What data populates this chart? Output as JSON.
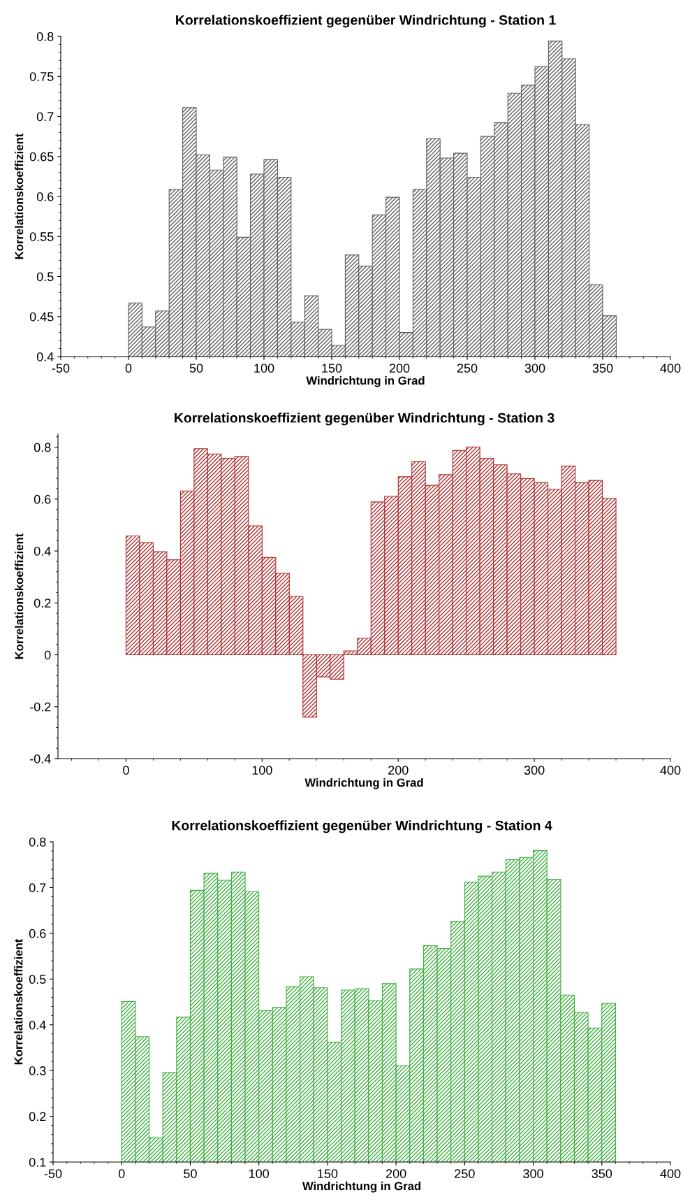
{
  "chart_data": [
    {
      "type": "histogram",
      "title": "Korrelationskoeffizient gegenüber Windrichtung - Station 1",
      "xlabel": "Windrichtung in Grad",
      "ylabel": "Korrelationskoeffizient",
      "color": "#606060",
      "bins": [
        0,
        10,
        20,
        30,
        40,
        50,
        60,
        70,
        80,
        90,
        100,
        110,
        120,
        130,
        140,
        150,
        160,
        170,
        180,
        190,
        200,
        210,
        220,
        230,
        240,
        250,
        260,
        270,
        280,
        290,
        300,
        310,
        320,
        330,
        340,
        350,
        360
      ],
      "values": [
        0.467,
        0.437,
        0.457,
        0.609,
        0.711,
        0.652,
        0.633,
        0.649,
        0.549,
        0.628,
        0.646,
        0.624,
        0.443,
        0.476,
        0.434,
        0.414,
        0.527,
        0.513,
        0.577,
        0.599,
        0.43,
        0.609,
        0.672,
        0.648,
        0.654,
        0.624,
        0.675,
        0.692,
        0.729,
        0.739,
        0.762,
        0.794,
        0.772,
        0.69,
        0.49,
        0.451
      ],
      "xlim": [
        -50,
        400
      ],
      "xticks": [
        -50,
        0,
        50,
        100,
        150,
        200,
        250,
        300,
        350,
        400
      ],
      "ylim": [
        0.4,
        0.8
      ],
      "yticks": [
        0.4,
        0.45,
        0.5,
        0.55,
        0.6,
        0.65,
        0.7,
        0.75,
        0.8
      ],
      "grid": false,
      "legend": false
    },
    {
      "type": "histogram",
      "title": "Korrelationskoeffizient gegenüber Windrichtung - Station 3",
      "xlabel": "Windrichtung in Grad",
      "ylabel": "Korrelationskoeffizient",
      "color": "#b03030",
      "bins": [
        0,
        10,
        20,
        30,
        40,
        50,
        60,
        70,
        80,
        90,
        100,
        110,
        120,
        130,
        140,
        150,
        160,
        170,
        180,
        190,
        200,
        210,
        220,
        230,
        240,
        250,
        260,
        270,
        280,
        290,
        300,
        310,
        320,
        330,
        340,
        350,
        360
      ],
      "values": [
        0.458,
        0.432,
        0.397,
        0.366,
        0.631,
        0.794,
        0.774,
        0.757,
        0.764,
        0.497,
        0.375,
        0.314,
        0.225,
        -0.24,
        -0.085,
        -0.094,
        0.015,
        0.064,
        0.589,
        0.611,
        0.686,
        0.744,
        0.653,
        0.694,
        0.787,
        0.801,
        0.757,
        0.732,
        0.697,
        0.679,
        0.663,
        0.638,
        0.727,
        0.663,
        0.672,
        0.603
      ],
      "xlim": [
        -50,
        400
      ],
      "xticks": [
        0,
        100,
        200,
        300,
        400
      ],
      "ylim": [
        -0.4,
        0.85
      ],
      "yticks": [
        -0.4,
        -0.2,
        0,
        0.2,
        0.4,
        0.6,
        0.8
      ],
      "grid": false,
      "legend": false
    },
    {
      "type": "histogram",
      "title": "Korrelationskoeffizient gegenüber Windrichtung - Station 4",
      "xlabel": "Windrichtung in Grad",
      "ylabel": "Korrelationskoeffizient",
      "color": "#40b040",
      "bins": [
        0,
        10,
        20,
        30,
        40,
        50,
        60,
        70,
        80,
        90,
        100,
        110,
        120,
        130,
        140,
        150,
        160,
        170,
        180,
        190,
        200,
        210,
        220,
        230,
        240,
        250,
        260,
        270,
        280,
        290,
        300,
        310,
        320,
        330,
        340,
        350,
        360
      ],
      "values": [
        0.451,
        0.374,
        0.153,
        0.296,
        0.417,
        0.694,
        0.731,
        0.716,
        0.734,
        0.691,
        0.431,
        0.438,
        0.483,
        0.505,
        0.481,
        0.362,
        0.476,
        0.479,
        0.453,
        0.49,
        0.311,
        0.522,
        0.573,
        0.567,
        0.626,
        0.712,
        0.725,
        0.734,
        0.761,
        0.766,
        0.781,
        0.718,
        0.465,
        0.427,
        0.393,
        0.447
      ],
      "xlim": [
        -50,
        400
      ],
      "xticks": [
        -50,
        0,
        50,
        100,
        150,
        200,
        250,
        300,
        350,
        400
      ],
      "ylim": [
        0.1,
        0.8
      ],
      "yticks": [
        0.1,
        0.2,
        0.3,
        0.4,
        0.5,
        0.6,
        0.7,
        0.8
      ],
      "grid": false,
      "legend": false
    }
  ]
}
